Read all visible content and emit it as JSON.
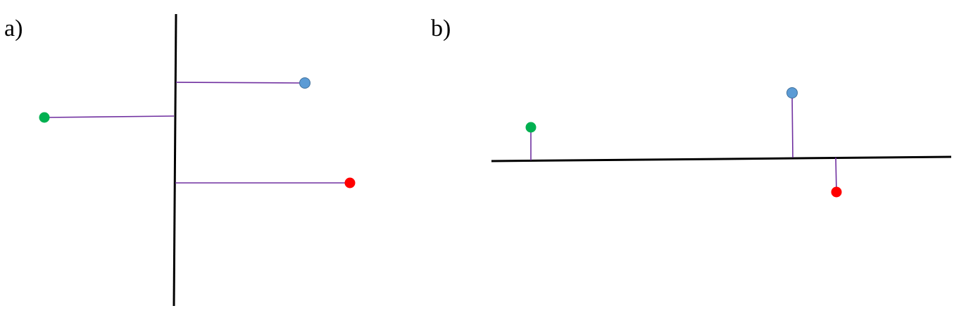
{
  "panels": {
    "a": {
      "label": "a)"
    },
    "b": {
      "label": "b)"
    }
  },
  "colors": {
    "axis": "#000000",
    "connector": "#7030a0",
    "point_blue": "#5b9bd5",
    "point_green": "#00b050",
    "point_red": "#ff0000"
  }
}
